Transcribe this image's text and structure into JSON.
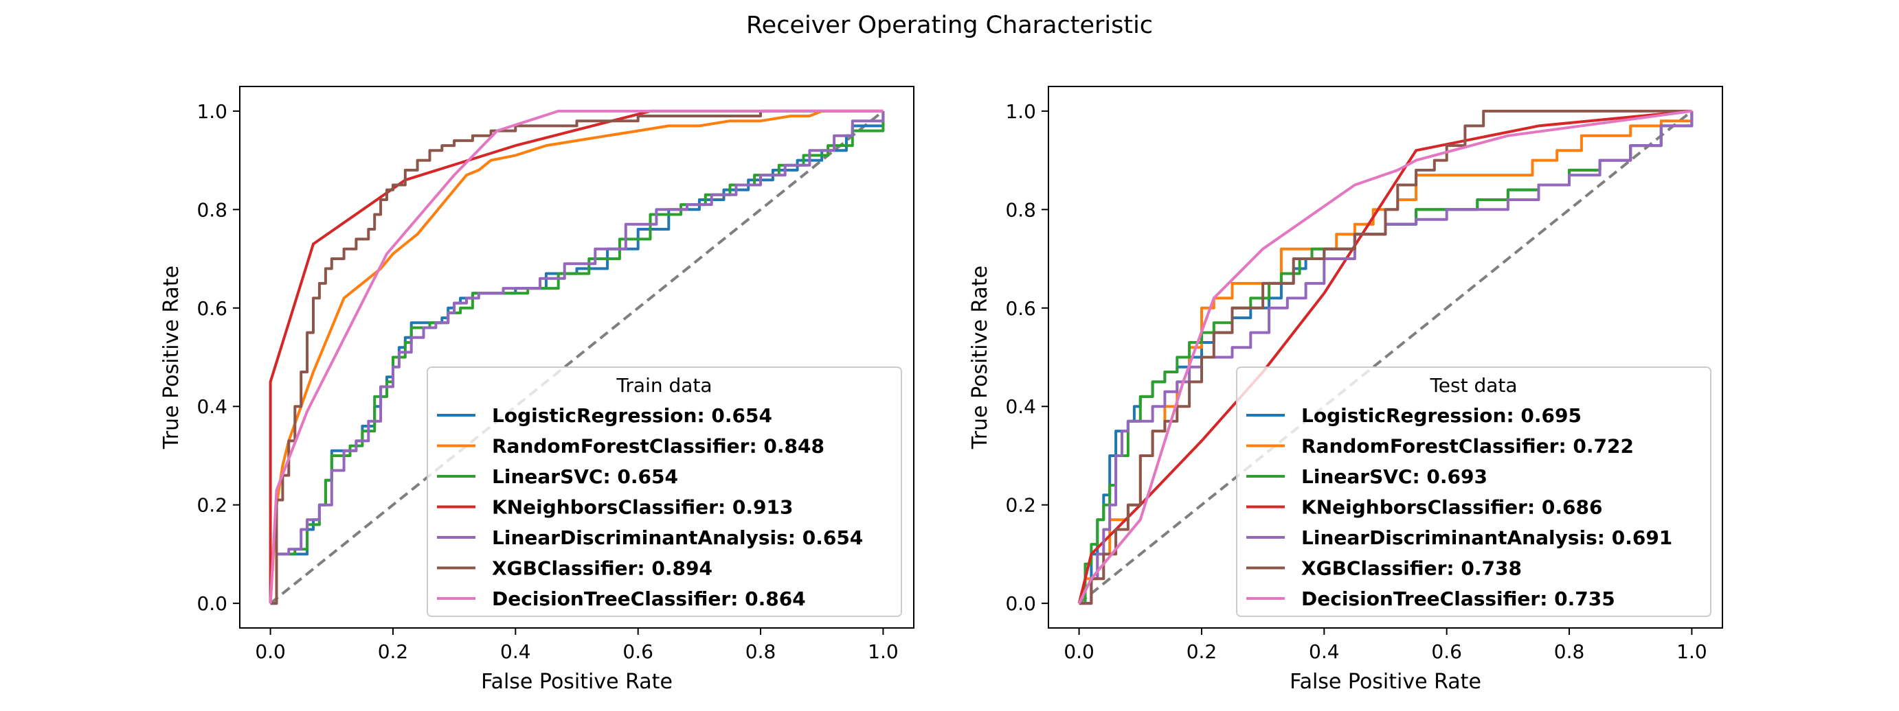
{
  "chart_data": {
    "type": "line",
    "title": "Receiver Operating Characteristic",
    "colors": {
      "LogisticRegression": "#1f77b4",
      "RandomForestClassifier": "#ff7f0e",
      "LinearSVC": "#2ca02c",
      "KNeighborsClassifier": "#d62728",
      "LinearDiscriminantAnalysis": "#9467bd",
      "XGBClassifier": "#8c564b",
      "DecisionTreeClassifier": "#e377c2",
      "diagonal": "#7f7f7f"
    },
    "panels": [
      {
        "xlabel": "False Positive Rate",
        "ylabel": "True Positive Rate",
        "xlim": [
          -0.05,
          1.05
        ],
        "ylim": [
          -0.05,
          1.05
        ],
        "xticks": [
          "0.0",
          "0.2",
          "0.4",
          "0.6",
          "0.8",
          "1.0"
        ],
        "yticks": [
          "0.0",
          "0.2",
          "0.4",
          "0.6",
          "0.8",
          "1.0"
        ],
        "legend_title": "Train data",
        "legend_loc": "lower right",
        "series": [
          {
            "name": "LogisticRegression: 0.654",
            "key": "LogisticRegression",
            "step": true,
            "x": [
              0,
              0.01,
              0.02,
              0.04,
              0.06,
              0.07,
              0.08,
              0.09,
              0.1,
              0.14,
              0.15,
              0.17,
              0.18,
              0.19,
              0.2,
              0.21,
              0.22,
              0.23,
              0.25,
              0.28,
              0.29,
              0.3,
              0.31,
              0.33,
              0.35,
              0.4,
              0.45,
              0.5,
              0.55,
              0.6,
              0.65,
              0.7,
              0.74,
              0.78,
              0.82,
              0.86,
              0.9,
              0.94,
              0.95,
              1.0
            ],
            "y": [
              0,
              0.1,
              0.1,
              0.1,
              0.15,
              0.17,
              0.2,
              0.25,
              0.31,
              0.33,
              0.36,
              0.4,
              0.44,
              0.46,
              0.5,
              0.52,
              0.54,
              0.57,
              0.57,
              0.58,
              0.6,
              0.61,
              0.62,
              0.63,
              0.63,
              0.64,
              0.67,
              0.68,
              0.72,
              0.76,
              0.8,
              0.82,
              0.84,
              0.86,
              0.88,
              0.9,
              0.92,
              0.95,
              0.97,
              1.0
            ]
          },
          {
            "name": "RandomForestClassifier: 0.848",
            "key": "RandomForestClassifier",
            "step": false,
            "x": [
              0,
              0.01,
              0.02,
              0.03,
              0.05,
              0.07,
              0.1,
              0.12,
              0.15,
              0.18,
              0.2,
              0.22,
              0.24,
              0.26,
              0.28,
              0.3,
              0.32,
              0.34,
              0.36,
              0.4,
              0.45,
              0.5,
              0.55,
              0.6,
              0.65,
              0.7,
              0.75,
              0.8,
              0.85,
              0.88,
              0.9,
              1.0
            ],
            "y": [
              0,
              0.2,
              0.28,
              0.33,
              0.4,
              0.47,
              0.56,
              0.62,
              0.65,
              0.68,
              0.71,
              0.73,
              0.75,
              0.78,
              0.81,
              0.84,
              0.87,
              0.88,
              0.9,
              0.91,
              0.93,
              0.94,
              0.95,
              0.96,
              0.97,
              0.97,
              0.98,
              0.98,
              0.99,
              0.99,
              1.0,
              1.0
            ]
          },
          {
            "name": "LinearSVC: 0.654",
            "key": "LinearSVC",
            "step": true,
            "x": [
              0,
              0.01,
              0.02,
              0.04,
              0.06,
              0.08,
              0.09,
              0.1,
              0.13,
              0.15,
              0.17,
              0.19,
              0.2,
              0.22,
              0.23,
              0.26,
              0.29,
              0.31,
              0.33,
              0.36,
              0.42,
              0.47,
              0.52,
              0.57,
              0.62,
              0.67,
              0.71,
              0.75,
              0.79,
              0.83,
              0.87,
              0.91,
              0.95,
              1.0
            ],
            "y": [
              0,
              0.1,
              0.1,
              0.11,
              0.16,
              0.2,
              0.25,
              0.3,
              0.32,
              0.35,
              0.42,
              0.45,
              0.5,
              0.53,
              0.56,
              0.57,
              0.59,
              0.6,
              0.63,
              0.63,
              0.64,
              0.67,
              0.7,
              0.74,
              0.79,
              0.81,
              0.83,
              0.85,
              0.87,
              0.89,
              0.91,
              0.93,
              0.96,
              1.0
            ]
          },
          {
            "name": "KNeighborsClassifier: 0.913",
            "key": "KNeighborsClassifier",
            "step": false,
            "x": [
              0,
              0,
              0.07,
              0.22,
              0.4,
              0.62,
              1.0
            ],
            "y": [
              0,
              0.45,
              0.73,
              0.86,
              0.93,
              1.0,
              1.0
            ]
          },
          {
            "name": "LinearDiscriminantAnalysis: 0.654",
            "key": "LinearDiscriminantAnalysis",
            "step": true,
            "x": [
              0,
              0.01,
              0.03,
              0.05,
              0.06,
              0.08,
              0.1,
              0.12,
              0.14,
              0.16,
              0.18,
              0.2,
              0.21,
              0.23,
              0.25,
              0.27,
              0.29,
              0.3,
              0.32,
              0.34,
              0.38,
              0.44,
              0.48,
              0.53,
              0.58,
              0.63,
              0.68,
              0.72,
              0.76,
              0.8,
              0.84,
              0.88,
              0.92,
              0.95,
              1.0
            ],
            "y": [
              0,
              0.1,
              0.11,
              0.15,
              0.17,
              0.2,
              0.27,
              0.31,
              0.33,
              0.37,
              0.44,
              0.48,
              0.51,
              0.54,
              0.56,
              0.57,
              0.59,
              0.61,
              0.62,
              0.63,
              0.64,
              0.66,
              0.69,
              0.72,
              0.77,
              0.8,
              0.81,
              0.83,
              0.85,
              0.87,
              0.89,
              0.92,
              0.95,
              0.98,
              1.0
            ]
          },
          {
            "name": "XGBClassifier: 0.894",
            "key": "XGBClassifier",
            "step": true,
            "x": [
              0,
              0.01,
              0.02,
              0.03,
              0.04,
              0.05,
              0.06,
              0.07,
              0.08,
              0.09,
              0.1,
              0.12,
              0.14,
              0.16,
              0.17,
              0.18,
              0.19,
              0.2,
              0.22,
              0.24,
              0.26,
              0.28,
              0.3,
              0.33,
              0.36,
              0.4,
              0.5,
              0.6,
              0.7,
              0.8,
              0.9,
              1.0
            ],
            "y": [
              0,
              0.21,
              0.26,
              0.33,
              0.4,
              0.47,
              0.55,
              0.62,
              0.65,
              0.68,
              0.7,
              0.72,
              0.74,
              0.76,
              0.79,
              0.82,
              0.84,
              0.85,
              0.88,
              0.9,
              0.92,
              0.93,
              0.94,
              0.95,
              0.96,
              0.97,
              0.98,
              0.99,
              0.99,
              1.0,
              1.0,
              1.0
            ]
          },
          {
            "name": "DecisionTreeClassifier: 0.864",
            "key": "DecisionTreeClassifier",
            "step": false,
            "x": [
              0,
              0.01,
              0.06,
              0.19,
              0.3,
              0.37,
              0.47,
              0.62,
              1.0
            ],
            "y": [
              0,
              0.23,
              0.39,
              0.71,
              0.87,
              0.96,
              1.0,
              1.0,
              1.0
            ]
          }
        ]
      },
      {
        "xlabel": "False Positive Rate",
        "ylabel": "True Positive Rate",
        "xlim": [
          -0.05,
          1.05
        ],
        "ylim": [
          -0.05,
          1.05
        ],
        "xticks": [
          "0.0",
          "0.2",
          "0.4",
          "0.6",
          "0.8",
          "1.0"
        ],
        "yticks": [
          "0.0",
          "0.2",
          "0.4",
          "0.6",
          "0.8",
          "1.0"
        ],
        "legend_title": "Test data",
        "legend_loc": "lower right",
        "series": [
          {
            "name": "LogisticRegression: 0.695",
            "key": "LogisticRegression",
            "step": true,
            "x": [
              0,
              0.02,
              0.03,
              0.04,
              0.05,
              0.06,
              0.08,
              0.09,
              0.1,
              0.12,
              0.14,
              0.16,
              0.18,
              0.2,
              0.22,
              0.25,
              0.28,
              0.31,
              0.33,
              0.35,
              0.37,
              0.4,
              0.45,
              0.5,
              0.55,
              0.6,
              0.65,
              0.7,
              0.75,
              0.8,
              0.85,
              0.9,
              0.95,
              1.0
            ],
            "y": [
              0,
              0.1,
              0.17,
              0.22,
              0.3,
              0.35,
              0.37,
              0.4,
              0.42,
              0.45,
              0.47,
              0.48,
              0.5,
              0.53,
              0.55,
              0.58,
              0.6,
              0.62,
              0.65,
              0.68,
              0.7,
              0.72,
              0.75,
              0.77,
              0.8,
              0.8,
              0.82,
              0.84,
              0.85,
              0.88,
              0.9,
              0.93,
              0.97,
              1.0
            ]
          },
          {
            "name": "RandomForestClassifier: 0.722",
            "key": "RandomForestClassifier",
            "step": true,
            "x": [
              0,
              0.01,
              0.03,
              0.05,
              0.08,
              0.1,
              0.12,
              0.14,
              0.16,
              0.18,
              0.2,
              0.22,
              0.25,
              0.3,
              0.33,
              0.38,
              0.42,
              0.45,
              0.48,
              0.52,
              0.55,
              0.6,
              0.65,
              0.7,
              0.74,
              0.78,
              0.82,
              0.86,
              0.9,
              0.95,
              1.0
            ],
            "y": [
              0,
              0.05,
              0.1,
              0.17,
              0.2,
              0.3,
              0.35,
              0.4,
              0.45,
              0.52,
              0.6,
              0.62,
              0.65,
              0.65,
              0.72,
              0.72,
              0.75,
              0.77,
              0.8,
              0.82,
              0.87,
              0.87,
              0.87,
              0.87,
              0.9,
              0.92,
              0.95,
              0.95,
              0.97,
              0.98,
              1.0
            ]
          },
          {
            "name": "LinearSVC: 0.693",
            "key": "LinearSVC",
            "step": true,
            "x": [
              0,
              0.01,
              0.02,
              0.03,
              0.04,
              0.05,
              0.06,
              0.08,
              0.1,
              0.12,
              0.14,
              0.16,
              0.18,
              0.2,
              0.22,
              0.25,
              0.28,
              0.31,
              0.33,
              0.36,
              0.38,
              0.4,
              0.45,
              0.5,
              0.55,
              0.6,
              0.65,
              0.7,
              0.75,
              0.8,
              0.85,
              0.9,
              0.95,
              1.0
            ],
            "y": [
              0,
              0.08,
              0.12,
              0.17,
              0.2,
              0.24,
              0.3,
              0.37,
              0.42,
              0.45,
              0.47,
              0.5,
              0.53,
              0.55,
              0.57,
              0.6,
              0.62,
              0.65,
              0.67,
              0.7,
              0.72,
              0.72,
              0.75,
              0.77,
              0.8,
              0.8,
              0.82,
              0.84,
              0.85,
              0.88,
              0.9,
              0.93,
              0.97,
              1.0
            ]
          },
          {
            "name": "KNeighborsClassifier: 0.686",
            "key": "KNeighborsClassifier",
            "step": false,
            "x": [
              0,
              0.02,
              0.1,
              0.2,
              0.3,
              0.4,
              0.55,
              0.75,
              1.0
            ],
            "y": [
              0,
              0.1,
              0.2,
              0.33,
              0.47,
              0.63,
              0.92,
              0.97,
              1.0
            ]
          },
          {
            "name": "LinearDiscriminantAnalysis: 0.691",
            "key": "LinearDiscriminantAnalysis",
            "step": true,
            "x": [
              0,
              0.02,
              0.03,
              0.04,
              0.05,
              0.06,
              0.07,
              0.08,
              0.1,
              0.12,
              0.14,
              0.16,
              0.18,
              0.2,
              0.22,
              0.25,
              0.28,
              0.31,
              0.34,
              0.37,
              0.4,
              0.45,
              0.5,
              0.55,
              0.6,
              0.65,
              0.7,
              0.75,
              0.8,
              0.85,
              0.9,
              0.95,
              1.0
            ],
            "y": [
              0,
              0.05,
              0.1,
              0.15,
              0.2,
              0.3,
              0.35,
              0.37,
              0.37,
              0.4,
              0.43,
              0.45,
              0.48,
              0.5,
              0.5,
              0.52,
              0.55,
              0.6,
              0.62,
              0.65,
              0.7,
              0.75,
              0.77,
              0.78,
              0.8,
              0.8,
              0.82,
              0.85,
              0.87,
              0.9,
              0.93,
              0.97,
              1.0
            ]
          },
          {
            "name": "XGBClassifier: 0.738",
            "key": "XGBClassifier",
            "step": true,
            "x": [
              0,
              0.02,
              0.04,
              0.06,
              0.08,
              0.1,
              0.12,
              0.14,
              0.16,
              0.18,
              0.2,
              0.22,
              0.25,
              0.3,
              0.35,
              0.4,
              0.45,
              0.5,
              0.52,
              0.55,
              0.58,
              0.6,
              0.63,
              0.66,
              0.7,
              0.8,
              0.9,
              1.0
            ],
            "y": [
              0,
              0.05,
              0.1,
              0.15,
              0.2,
              0.3,
              0.35,
              0.37,
              0.4,
              0.45,
              0.5,
              0.55,
              0.6,
              0.65,
              0.7,
              0.72,
              0.75,
              0.8,
              0.85,
              0.88,
              0.9,
              0.93,
              0.97,
              1.0,
              1.0,
              1.0,
              1.0,
              1.0
            ]
          },
          {
            "name": "DecisionTreeClassifier: 0.735",
            "key": "DecisionTreeClassifier",
            "step": false,
            "x": [
              0,
              0.02,
              0.1,
              0.17,
              0.22,
              0.3,
              0.45,
              0.52,
              0.55,
              0.7,
              1.0
            ],
            "y": [
              0,
              0.05,
              0.17,
              0.45,
              0.62,
              0.72,
              0.85,
              0.88,
              0.9,
              0.95,
              1.0
            ]
          }
        ]
      }
    ]
  }
}
